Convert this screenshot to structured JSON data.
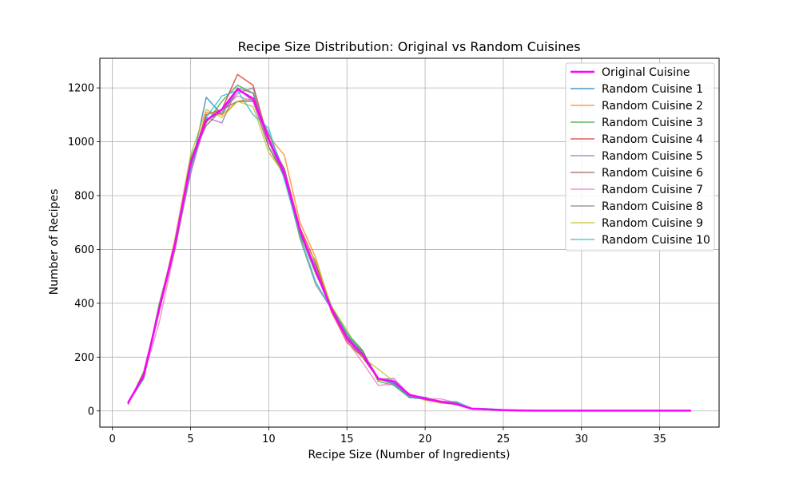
{
  "chart_data": {
    "type": "line",
    "title": "Recipe Size Distribution: Original vs Random Cuisines",
    "xlabel": "Recipe Size (Number of Ingredients)",
    "ylabel": "Number of Recipes",
    "xlim": [
      -0.8,
      38.8
    ],
    "ylim": [
      -60,
      1310
    ],
    "x_ticks": [
      0,
      5,
      10,
      15,
      20,
      25,
      30,
      35
    ],
    "y_ticks": [
      0,
      200,
      400,
      600,
      800,
      1000,
      1200
    ],
    "grid": true,
    "legend_position": "top-right",
    "x": [
      1,
      2,
      3,
      4,
      5,
      6,
      7,
      8,
      9,
      10,
      11,
      12,
      13,
      14,
      15,
      16,
      17,
      18,
      19,
      20,
      21,
      22,
      23,
      24,
      25,
      26,
      27,
      28,
      29,
      30,
      31,
      32,
      33,
      34,
      35,
      36,
      37
    ],
    "series": [
      {
        "name": "Original Cuisine",
        "color": "#ff00ff",
        "width": 2.5,
        "values": [
          30,
          130,
          380,
          620,
          920,
          1080,
          1120,
          1195,
          1160,
          1010,
          880,
          670,
          520,
          380,
          270,
          210,
          120,
          110,
          60,
          45,
          35,
          25,
          8,
          6,
          3,
          2,
          1,
          1,
          1,
          1,
          1,
          1,
          1,
          1,
          1,
          1,
          1
        ]
      },
      {
        "name": "Random Cuisine 1",
        "color": "#1f77b4",
        "values": [
          28,
          135,
          390,
          600,
          890,
          1165,
          1100,
          1200,
          1150,
          1030,
          890,
          650,
          540,
          390,
          280,
          220,
          120,
          105,
          55,
          50,
          35,
          30,
          10,
          8,
          4,
          3,
          2,
          1,
          1,
          1,
          1,
          1,
          1,
          1,
          1,
          1,
          1
        ]
      },
      {
        "name": "Random Cuisine 2",
        "color": "#ff7f0e",
        "values": [
          32,
          128,
          370,
          610,
          900,
          1110,
          1100,
          1150,
          1160,
          1020,
          950,
          700,
          570,
          380,
          280,
          210,
          115,
          110,
          60,
          40,
          35,
          25,
          9,
          7,
          4,
          3,
          2,
          1,
          1,
          1,
          1,
          1,
          1,
          1,
          1,
          1,
          1
        ]
      },
      {
        "name": "Random Cuisine 3",
        "color": "#2ca02c",
        "values": [
          30,
          120,
          400,
          620,
          940,
          1070,
          1150,
          1210,
          1180,
          1000,
          870,
          660,
          510,
          390,
          290,
          225,
          110,
          95,
          50,
          45,
          30,
          28,
          8,
          5,
          3,
          2,
          1,
          1,
          1,
          1,
          1,
          1,
          1,
          1,
          1,
          1,
          1
        ]
      },
      {
        "name": "Random Cuisine 4",
        "color": "#d62728",
        "values": [
          26,
          140,
          380,
          600,
          910,
          1100,
          1120,
          1250,
          1210,
          1000,
          900,
          680,
          550,
          370,
          255,
          200,
          120,
          100,
          55,
          45,
          30,
          25,
          8,
          6,
          3,
          2,
          1,
          1,
          1,
          1,
          1,
          1,
          1,
          1,
          1,
          1,
          1
        ]
      },
      {
        "name": "Random Cuisine 5",
        "color": "#9467bd",
        "values": [
          30,
          130,
          385,
          610,
          880,
          1090,
          1070,
          1200,
          1180,
          1000,
          900,
          670,
          530,
          385,
          275,
          210,
          118,
          120,
          60,
          50,
          35,
          30,
          9,
          6,
          3,
          2,
          1,
          1,
          1,
          1,
          1,
          1,
          1,
          1,
          1,
          1,
          1
        ]
      },
      {
        "name": "Random Cuisine 6",
        "color": "#8c564b",
        "values": [
          24,
          145,
          380,
          620,
          930,
          1060,
          1120,
          1150,
          1150,
          980,
          870,
          660,
          520,
          390,
          265,
          200,
          120,
          100,
          50,
          45,
          30,
          25,
          8,
          5,
          3,
          2,
          1,
          1,
          1,
          1,
          1,
          1,
          1,
          1,
          1,
          1,
          1
        ]
      },
      {
        "name": "Random Cuisine 7",
        "color": "#e377c2",
        "values": [
          30,
          130,
          330,
          600,
          890,
          1080,
          1120,
          1170,
          1150,
          1000,
          880,
          660,
          530,
          380,
          260,
          180,
          95,
          100,
          55,
          45,
          45,
          30,
          10,
          6,
          3,
          2,
          1,
          1,
          1,
          1,
          1,
          1,
          1,
          1,
          1,
          1,
          1
        ]
      },
      {
        "name": "Random Cuisine 8",
        "color": "#7f7f7f",
        "values": [
          30,
          135,
          390,
          600,
          900,
          1080,
          1110,
          1180,
          1200,
          980,
          880,
          640,
          470,
          380,
          280,
          220,
          120,
          100,
          50,
          45,
          35,
          30,
          8,
          5,
          3,
          2,
          1,
          1,
          1,
          1,
          1,
          1,
          1,
          1,
          1,
          1,
          1
        ]
      },
      {
        "name": "Random Cuisine 9",
        "color": "#bcbd22",
        "values": [
          32,
          120,
          380,
          640,
          950,
          1120,
          1090,
          1150,
          1130,
          960,
          880,
          640,
          560,
          390,
          300,
          200,
          155,
          110,
          60,
          40,
          30,
          25,
          8,
          6,
          3,
          2,
          1,
          1,
          1,
          1,
          1,
          1,
          1,
          1,
          1,
          1,
          1
        ]
      },
      {
        "name": "Random Cuisine 10",
        "color": "#17becf",
        "values": [
          30,
          120,
          385,
          620,
          900,
          1090,
          1170,
          1190,
          1100,
          1050,
          860,
          650,
          480,
          380,
          290,
          210,
          120,
          100,
          50,
          45,
          35,
          35,
          9,
          8,
          4,
          2,
          1,
          1,
          1,
          1,
          1,
          1,
          1,
          1,
          1,
          1,
          1
        ]
      }
    ]
  }
}
